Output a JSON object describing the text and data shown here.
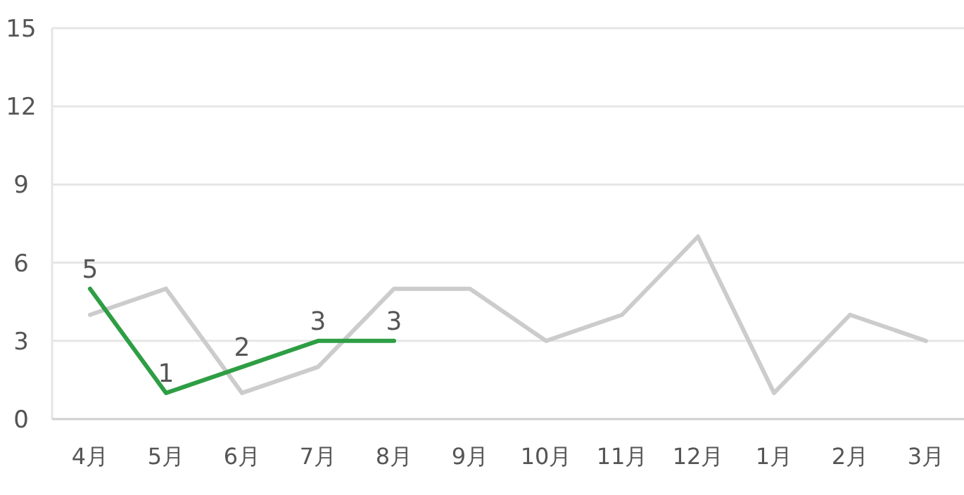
{
  "chart_data": {
    "type": "line",
    "categories": [
      "4月",
      "5月",
      "6月",
      "7月",
      "8月",
      "9月",
      "10月",
      "11月",
      "12月",
      "1月",
      "2月",
      "3月"
    ],
    "series": [
      {
        "color": "#cccccc",
        "values": [
          4,
          5,
          1,
          2,
          5,
          5,
          3,
          4,
          7,
          1,
          4,
          3
        ]
      },
      {
        "color": "#2e9e44",
        "values": [
          5,
          1,
          2,
          3,
          3,
          null,
          null,
          null,
          null,
          null,
          null,
          null
        ],
        "value_labels": [
          "5",
          "1",
          "2",
          "3",
          "3",
          null,
          null,
          null,
          null,
          null,
          null,
          null
        ]
      }
    ],
    "ylim": [
      0,
      15
    ],
    "yticks": [
      0,
      3,
      6,
      9,
      12,
      15
    ],
    "grid": "y",
    "marker": "none",
    "line_style": "solid"
  }
}
